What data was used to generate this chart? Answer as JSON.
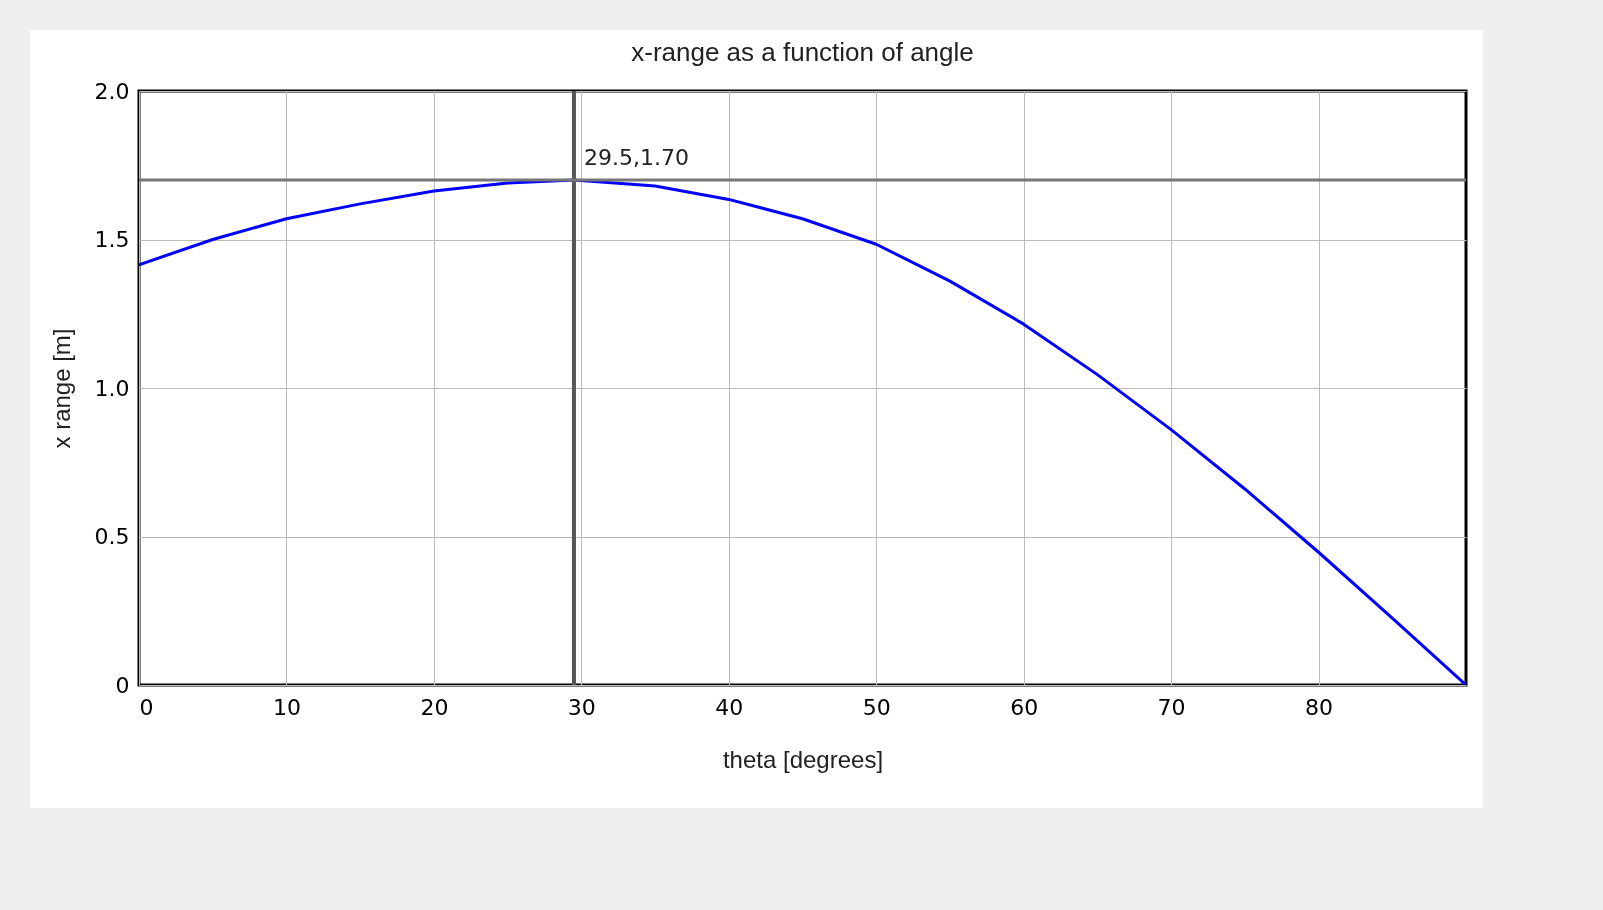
{
  "chart_data": {
    "type": "line",
    "title": "x-range as a function of angle",
    "xlabel": "theta [degrees]",
    "ylabel": "x range [m]",
    "x": [
      0,
      5,
      10,
      15,
      20,
      25,
      29.5,
      35,
      40,
      45,
      50,
      55,
      60,
      65,
      70,
      75,
      80,
      85,
      90
    ],
    "series": [
      {
        "color": "#0000ff",
        "values": [
          1.415,
          1.5,
          1.57,
          1.62,
          1.663,
          1.69,
          1.7,
          1.68,
          1.635,
          1.57,
          1.484,
          1.36,
          1.215,
          1.045,
          0.86,
          0.66,
          0.447,
          0.225,
          0
        ]
      }
    ],
    "xlim": [
      0,
      90
    ],
    "xticks": [
      0,
      10,
      20,
      30,
      40,
      50,
      60,
      70,
      80
    ],
    "ylim": [
      0,
      2
    ],
    "yticks": [
      0,
      0.5,
      {
        "value": 1,
        "label": "1.0"
      },
      1.5,
      {
        "value": 2,
        "label": "2.0"
      }
    ],
    "ref_lines": [
      {
        "axis": "x",
        "value": 29.5,
        "color": "#555555"
      },
      {
        "axis": "y",
        "value": 1.7,
        "color": "#777777"
      }
    ],
    "annotations": [
      {
        "text": "29.5,1.70",
        "x": 29.5,
        "y": 1.7
      }
    ],
    "grid": true,
    "marker": "none",
    "line_style": "solid"
  }
}
